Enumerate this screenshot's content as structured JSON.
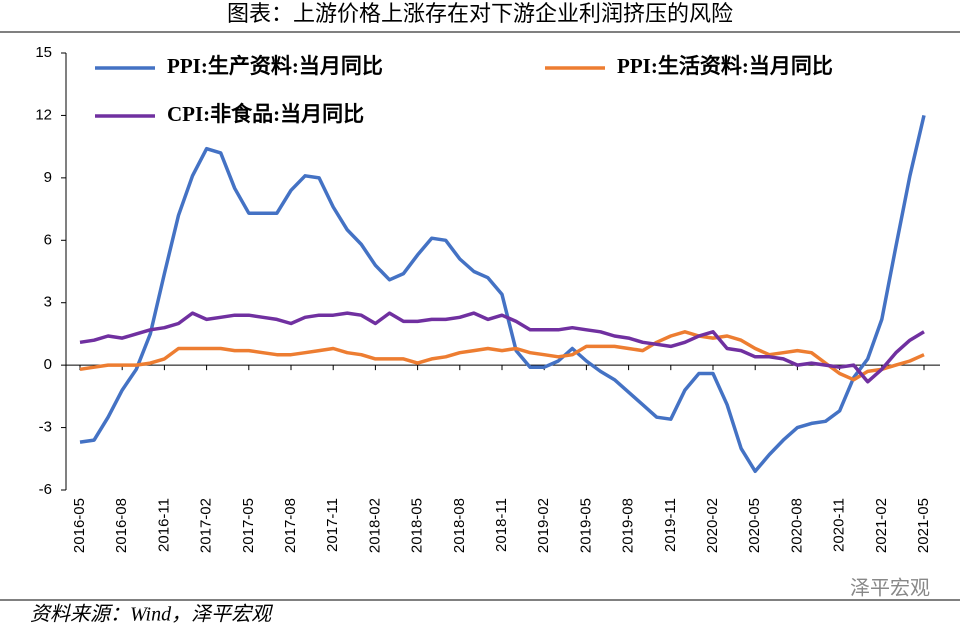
{
  "chart_data": {
    "type": "line",
    "title": "图表：上游价格上涨存在对下游企业利润挤压的风险",
    "source": "资料来源：Wind，泽平宏观",
    "watermark": "泽平宏观",
    "categories": [
      "2016-05",
      null,
      null,
      "2016-08",
      null,
      null,
      "2016-11",
      null,
      null,
      "2017-02",
      null,
      null,
      "2017-05",
      null,
      null,
      "2017-08",
      null,
      null,
      "2017-11",
      null,
      null,
      "2018-02",
      null,
      null,
      "2018-05",
      null,
      null,
      "2018-08",
      null,
      null,
      "2018-11",
      null,
      null,
      "2019-02",
      null,
      null,
      "2019-05",
      null,
      null,
      "2019-08",
      null,
      null,
      "2019-11",
      null,
      null,
      "2020-02",
      null,
      null,
      "2020-05",
      null,
      null,
      "2020-08",
      null,
      null,
      "2020-11",
      null,
      null,
      "2021-02",
      null,
      null,
      "2021-05"
    ],
    "series": [
      {
        "name": "PPI:生产资料:当月同比",
        "color": "#4472c4",
        "values": [
          -3.7,
          -3.6,
          -2.5,
          -1.2,
          -0.2,
          1.5,
          4.4,
          7.2,
          9.1,
          10.4,
          10.2,
          8.5,
          7.3,
          7.3,
          7.3,
          8.4,
          9.1,
          9.0,
          7.6,
          6.5,
          5.8,
          4.8,
          4.1,
          4.4,
          5.3,
          6.1,
          6.0,
          5.1,
          4.5,
          4.2,
          3.4,
          0.7,
          -0.1,
          -0.1,
          0.2,
          0.8,
          0.2,
          -0.3,
          -0.7,
          -1.3,
          -1.9,
          -2.5,
          -2.6,
          -1.2,
          -0.4,
          -0.4,
          -1.9,
          -4.0,
          -5.1,
          -4.3,
          -3.6,
          -3.0,
          -2.8,
          -2.7,
          -2.2,
          -0.6,
          0.3,
          2.2,
          5.7,
          9.1,
          12.0
        ]
      },
      {
        "name": "PPI:生活资料:当月同比",
        "color": "#ed7d31",
        "values": [
          -0.2,
          -0.1,
          0.0,
          0.0,
          0.0,
          0.1,
          0.3,
          0.8,
          0.8,
          0.8,
          0.8,
          0.7,
          0.7,
          0.6,
          0.5,
          0.5,
          0.6,
          0.7,
          0.8,
          0.6,
          0.5,
          0.3,
          0.3,
          0.3,
          0.1,
          0.3,
          0.4,
          0.6,
          0.7,
          0.8,
          0.7,
          0.8,
          0.6,
          0.5,
          0.4,
          0.5,
          0.9,
          0.9,
          0.9,
          0.8,
          0.7,
          1.1,
          1.4,
          1.6,
          1.4,
          1.3,
          1.4,
          1.2,
          0.8,
          0.5,
          0.6,
          0.7,
          0.6,
          0.1,
          -0.4,
          -0.7,
          -0.3,
          -0.2,
          0.0,
          0.2,
          0.5
        ]
      },
      {
        "name": "CPI:非食品:当月同比",
        "color": "#7030a0",
        "values": [
          1.1,
          1.2,
          1.4,
          1.3,
          1.5,
          1.7,
          1.8,
          2.0,
          2.5,
          2.2,
          2.3,
          2.4,
          2.4,
          2.3,
          2.2,
          2.0,
          2.3,
          2.4,
          2.4,
          2.5,
          2.4,
          2.0,
          2.5,
          2.1,
          2.1,
          2.2,
          2.2,
          2.3,
          2.5,
          2.2,
          2.4,
          2.1,
          1.7,
          1.7,
          1.7,
          1.8,
          1.7,
          1.6,
          1.4,
          1.3,
          1.1,
          1.0,
          0.9,
          1.1,
          1.4,
          1.6,
          0.8,
          0.7,
          0.4,
          0.4,
          0.3,
          0.0,
          0.1,
          0.0,
          -0.1,
          0.0,
          -0.8,
          -0.2,
          0.6,
          1.2,
          1.6
        ]
      }
    ],
    "ylim": [
      -6,
      15
    ],
    "yticks": [
      -6,
      -3,
      0,
      3,
      6,
      9,
      12,
      15
    ]
  }
}
